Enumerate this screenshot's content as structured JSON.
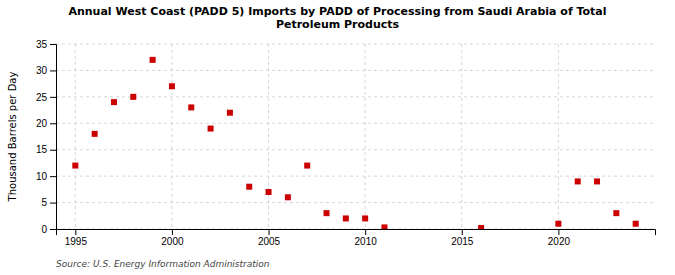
{
  "chart_data": {
    "type": "scatter",
    "title": "Annual West Coast (PADD 5) Imports by PADD of Processing from Saudi Arabia of Total\nPetroleum Products",
    "ylabel": "Thousand Barrels per Day",
    "source": "Source: U.S. Energy Information Administration",
    "x": [
      1995,
      1996,
      1997,
      1998,
      1999,
      2000,
      2001,
      2002,
      2003,
      2004,
      2005,
      2006,
      2007,
      2008,
      2009,
      2010,
      2011,
      2016,
      2020,
      2021,
      2022,
      2023,
      2024
    ],
    "values": [
      12,
      18,
      24,
      25,
      32,
      27,
      23,
      19,
      22,
      8,
      7,
      6,
      12,
      3,
      2,
      2,
      0.3,
      0.2,
      1,
      9,
      9,
      3,
      1
    ],
    "color": "#cc0000",
    "marker": "square",
    "xlim": [
      1994,
      2025
    ],
    "ylim": [
      0,
      35
    ],
    "xticks": [
      1995,
      2000,
      2005,
      2010,
      2015,
      2020
    ],
    "yticks": [
      0,
      5,
      10,
      15,
      20,
      25,
      30,
      35
    ],
    "grid": true
  }
}
